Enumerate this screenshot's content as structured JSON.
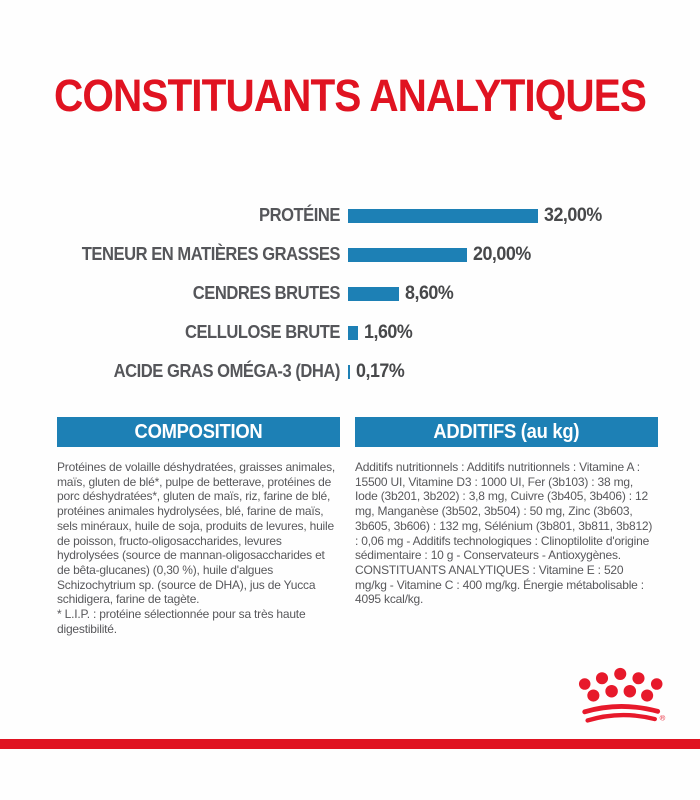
{
  "page": {
    "title": "CONSTITUANTS ANALYTIQUES"
  },
  "chart_data": {
    "type": "bar",
    "orientation": "horizontal",
    "title": "CONSTITUANTS ANALYTIQUES",
    "unit": "%",
    "categories": [
      "PROTÉINE",
      "TENEUR EN MATIÈRES GRASSES",
      "CENDRES BRUTES",
      "CELLULOSE BRUTE",
      "ACIDE GRAS OMÉGA-3 (DHA)"
    ],
    "values": [
      32.0,
      20.0,
      8.6,
      1.6,
      0.17
    ],
    "value_labels": [
      "32,00%",
      "20,00%",
      "8,60%",
      "1,60%",
      "0,17%"
    ],
    "xlim": [
      0,
      32
    ],
    "grid": false,
    "legend": false,
    "bar_color": "#1d80b5"
  },
  "sections": {
    "composition": {
      "header": "COMPOSITION",
      "body": "Protéines de volaille déshydratées, graisses animales, maïs, gluten de blé*, pulpe de betterave, protéines de porc déshydratées*, gluten de maïs, riz, farine de blé, protéines animales hydrolysées, blé, farine de maïs, sels minéraux, huile de soja, produits de levures, huile de poisson, fructo-oligosaccharides, levures hydrolysées (source de mannan-oligosaccharides et de bêta-glucanes) (0,30 %), huile d'algues Schizochytrium sp. (source de DHA), jus de Yucca schidigera, farine de tagète.",
      "footnote": "* L.I.P. : protéine sélectionnée pour sa très haute digestibilité."
    },
    "additives": {
      "header": "ADDITIFS (au kg)",
      "body": "Additifs nutritionnels : Additifs nutritionnels : Vitamine A : 15500 UI, Vitamine D3 : 1000 UI, Fer (3b103) : 38 mg, Iode (3b201, 3b202) : 3,8 mg, Cuivre (3b405, 3b406) : 12 mg, Manganèse (3b502, 3b504) : 50 mg, Zinc (3b603, 3b605, 3b606) : 132 mg, Sélénium (3b801, 3b811, 3b812) : 0,06 mg - Additifs technologiques : Clinoptilolite d'origine sédimentaire : 10 g - Conservateurs - Antioxygènes.",
      "analytical": "CONSTITUANTS ANALYTIQUES : Vitamine E : 520 mg/kg - Vitamine C : 400 mg/kg. Énergie métabolisable : 4095 kcal/kg."
    }
  },
  "branding": {
    "logo": "royal-canin-crown",
    "registered_mark": "®"
  },
  "colors": {
    "brand_red": "#e01321",
    "logo_red": "#e7192b",
    "header_blue": "#1d80b5",
    "bar_blue": "#1d80b5",
    "text_gray": "#58585b",
    "label_gray": "#55565a"
  }
}
